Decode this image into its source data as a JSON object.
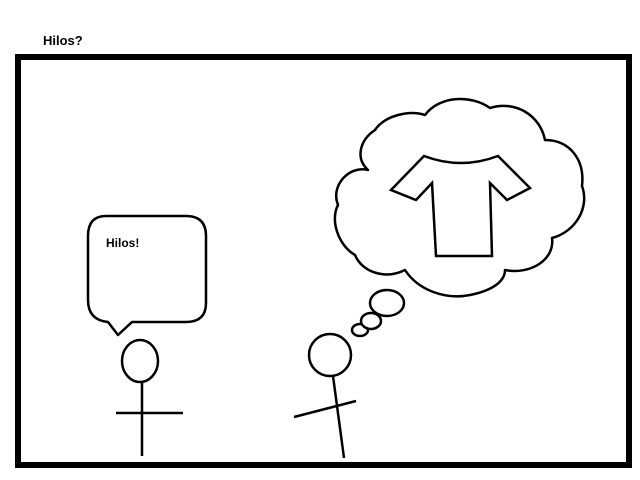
{
  "title": "Hilos?",
  "speech_bubble": {
    "text": "Hilos!"
  },
  "colors": {
    "ink": "#000000",
    "paper": "#ffffff"
  },
  "icons": {
    "thought_object": "t-shirt-icon"
  }
}
